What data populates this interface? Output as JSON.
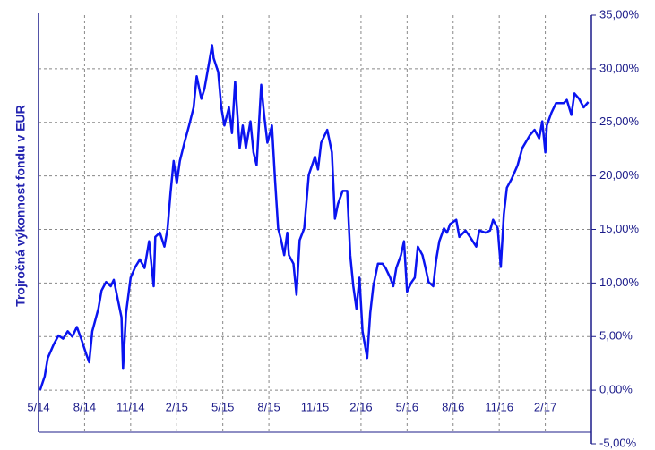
{
  "chart_data": {
    "type": "line",
    "y_label": "Trojročná výkonnost fondu v EUR",
    "xlim": [
      0,
      36
    ],
    "xticks": [
      {
        "value": 0,
        "label": "5/14"
      },
      {
        "value": 3,
        "label": "8/14"
      },
      {
        "value": 6,
        "label": "11/14"
      },
      {
        "value": 9,
        "label": "2/15"
      },
      {
        "value": 12,
        "label": "5/15"
      },
      {
        "value": 15,
        "label": "8/15"
      },
      {
        "value": 18,
        "label": "11/15"
      },
      {
        "value": 21,
        "label": "2/16"
      },
      {
        "value": 24,
        "label": "5/16"
      },
      {
        "value": 27,
        "label": "8/16"
      },
      {
        "value": 30,
        "label": "11/16"
      },
      {
        "value": 33,
        "label": "2/17"
      }
    ],
    "ylim": [
      -5,
      35
    ],
    "yticks": [
      {
        "value": -5,
        "label": "-5,00%"
      },
      {
        "value": 0,
        "label": "0,00%"
      },
      {
        "value": 5,
        "label": "5,00%"
      },
      {
        "value": 10,
        "label": "10,00%"
      },
      {
        "value": 15,
        "label": "15,00%"
      },
      {
        "value": 20,
        "label": "20,00%"
      },
      {
        "value": 25,
        "label": "25,00%"
      },
      {
        "value": 30,
        "label": "30,00%"
      },
      {
        "value": 35,
        "label": "35,00%"
      }
    ],
    "grid": true,
    "series": [
      {
        "color": "#0a14f0",
        "x": [
          0.1,
          0.4,
          0.6,
          1.0,
          1.3,
          1.6,
          1.9,
          2.2,
          2.5,
          2.8,
          3.1,
          3.3,
          3.5,
          3.9,
          4.1,
          4.4,
          4.7,
          4.9,
          5.1,
          5.4,
          5.5,
          5.7,
          6.0,
          6.3,
          6.6,
          6.9,
          7.2,
          7.5,
          7.6,
          7.9,
          8.2,
          8.4,
          8.6,
          8.8,
          9.0,
          9.2,
          9.5,
          9.8,
          10.1,
          10.3,
          10.6,
          10.8,
          11.0,
          11.3,
          11.4,
          11.7,
          11.9,
          12.1,
          12.4,
          12.6,
          12.8,
          13.1,
          13.3,
          13.5,
          13.8,
          14.0,
          14.2,
          14.5,
          14.7,
          14.9,
          15.2,
          15.4,
          15.6,
          15.8,
          16.0,
          16.2,
          16.3,
          16.6,
          16.8,
          17.0,
          17.3,
          17.6,
          18.0,
          18.2,
          18.4,
          18.8,
          19.1,
          19.3,
          19.5,
          19.8,
          20.1,
          20.3,
          20.5,
          20.7,
          20.9,
          21.1,
          21.4,
          21.6,
          21.8,
          22.1,
          22.4,
          22.6,
          22.9,
          23.1,
          23.3,
          23.6,
          23.8,
          24.0,
          24.3,
          24.5,
          24.7,
          25.0,
          25.2,
          25.4,
          25.7,
          25.9,
          26.1,
          26.4,
          26.6,
          26.8,
          27.2,
          27.4,
          27.8,
          28.1,
          28.5,
          28.7,
          29.1,
          29.4,
          29.6,
          29.9,
          30.1,
          30.3,
          30.5,
          30.8,
          31.2,
          31.5,
          32.0,
          32.3,
          32.6,
          32.8,
          33.0,
          33.1,
          33.4,
          33.7,
          34.2,
          34.4,
          34.7,
          34.9,
          35.2,
          35.5,
          35.8
        ],
        "values": [
          0,
          1.3,
          3,
          4.3,
          5.1,
          4.8,
          5.5,
          5,
          5.9,
          4.7,
          3.4,
          2.6,
          5.5,
          7.6,
          9.3,
          10.1,
          9.7,
          10.3,
          8.9,
          6.8,
          2.0,
          7.2,
          10.5,
          11.5,
          12.2,
          11.4,
          13.9,
          9.7,
          14.3,
          14.7,
          13.4,
          15.1,
          18.5,
          21.4,
          19.3,
          21.4,
          23.1,
          24.7,
          26.4,
          29.3,
          27.2,
          28.1,
          29.7,
          32.2,
          31,
          29.7,
          26.4,
          24.7,
          26.4,
          24,
          28.8,
          22.6,
          24.7,
          22.6,
          25.1,
          22.2,
          21,
          28.5,
          25.6,
          23.1,
          24.7,
          19.7,
          15.1,
          14,
          12.6,
          14.7,
          12.6,
          11.8,
          8.9,
          14,
          15.1,
          20.1,
          21.8,
          20.6,
          23.1,
          24.3,
          22.2,
          16,
          17.4,
          18.6,
          18.6,
          12.6,
          9.7,
          7.6,
          10.5,
          5.5,
          3,
          7.2,
          9.7,
          11.8,
          11.8,
          11.4,
          10.5,
          9.7,
          11.4,
          12.6,
          13.9,
          9.2,
          10.1,
          10.5,
          13.4,
          12.6,
          11.4,
          10.1,
          9.7,
          12.2,
          13.9,
          15.1,
          14.7,
          15.5,
          15.9,
          14.3,
          14.9,
          14.3,
          13.4,
          14.9,
          14.7,
          14.9,
          15.9,
          15.1,
          11.5,
          16.4,
          18.9,
          19.7,
          21,
          22.6,
          23.8,
          24.3,
          23.5,
          25.1,
          22.2,
          24.7,
          25.9,
          26.8,
          26.8,
          27.1,
          25.7,
          27.7,
          27.2,
          26.4,
          26.9
        ]
      }
    ]
  }
}
